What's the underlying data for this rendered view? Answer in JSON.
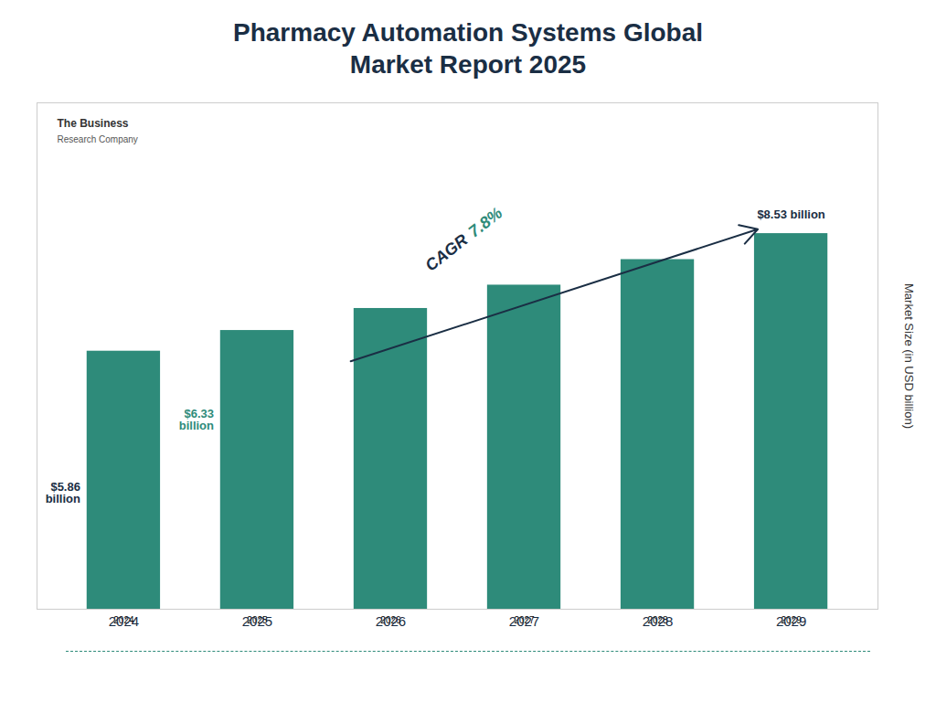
{
  "chart_data": {
    "type": "bar",
    "title": "Pharmacy Automation Systems Global\nMarket Report 2025",
    "categories": [
      "2024",
      "2025",
      "2026",
      "2027",
      "2028",
      "2029"
    ],
    "values": [
      5.86,
      6.33,
      6.83,
      7.36,
      7.94,
      8.53
    ],
    "color": "#2e8b7a",
    "title_color": "#1a2e44",
    "ylabel": "Market Size (in USD billion)",
    "ylim": [
      0,
      11.5
    ],
    "tick_labels": "x",
    "grid": false,
    "annotations": [
      {
        "text": "$5.86\nbillion",
        "category": "2024",
        "color": "#1a2e44"
      },
      {
        "text": "$6.33\nbillion",
        "category": "2025",
        "color": "#2e8b7a"
      },
      {
        "text": "$8.53 billion",
        "category": "2029",
        "color": "#1a2e44"
      },
      {
        "text": "CAGR ",
        "color": "#1a2e44"
      },
      {
        "text": "7.8%",
        "color": "#2e8b7a"
      },
      {
        "text": "The Business",
        "color": "#333333"
      },
      {
        "text": "Research Company",
        "color": "#555555"
      }
    ]
  }
}
